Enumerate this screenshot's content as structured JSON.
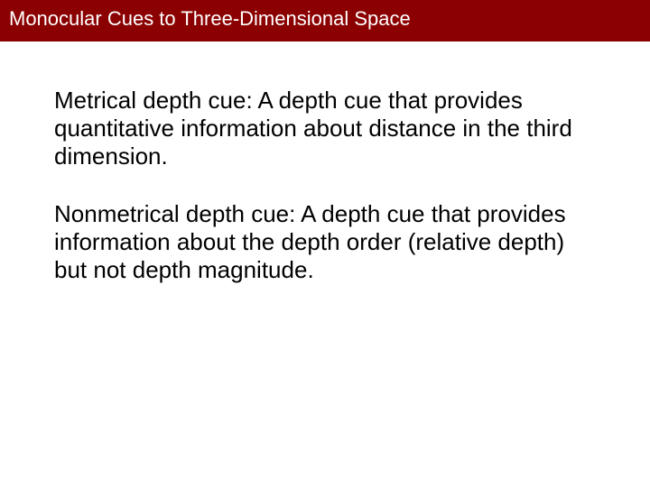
{
  "header": {
    "title": "Monocular Cues to Three-Dimensional Space",
    "background_color": "#8b0000",
    "text_color": "#ffffff",
    "fontsize": 22
  },
  "content": {
    "paragraphs": [
      "Metrical depth cue: A depth cue that provides quantitative information about distance in the third dimension.",
      "Nonmetrical depth cue: A depth cue that provides information about the depth order (relative depth) but not depth magnitude."
    ],
    "fontsize": 26,
    "text_color": "#000000"
  },
  "background_color": "#ffffff"
}
